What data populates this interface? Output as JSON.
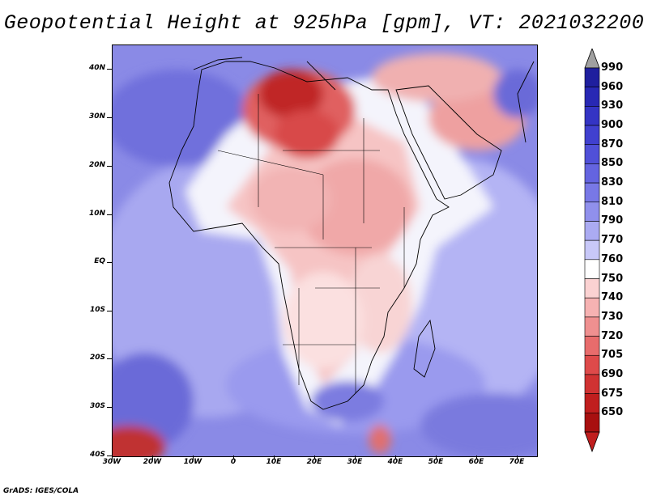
{
  "title": "Geopotential Height at 925hPa [gpm], VT: 2021032200",
  "credit": "GrADS: IGES/COLA",
  "map": {
    "region": "Africa",
    "lat_range": [
      -40,
      45
    ],
    "lon_range": [
      -30,
      75
    ],
    "lat_ticks": [
      "40N",
      "30N",
      "20N",
      "10N",
      "EQ",
      "10S",
      "20S",
      "30S",
      "40S"
    ],
    "lat_values": [
      40,
      30,
      20,
      10,
      0,
      -10,
      -20,
      -30,
      -40
    ],
    "lon_ticks": [
      "30W",
      "20W",
      "10W",
      "0",
      "10E",
      "20E",
      "30E",
      "40E",
      "50E",
      "60E",
      "70E"
    ],
    "lon_values": [
      -30,
      -20,
      -10,
      0,
      10,
      20,
      30,
      40,
      50,
      60,
      70
    ]
  },
  "colorbar": {
    "levels": [
      "990",
      "960",
      "930",
      "900",
      "870",
      "850",
      "830",
      "810",
      "790",
      "770",
      "760",
      "750",
      "740",
      "730",
      "720",
      "705",
      "690",
      "675",
      "650"
    ],
    "colors": [
      "#1f1f9e",
      "#2828b4",
      "#3434c4",
      "#4040cf",
      "#5050d8",
      "#6464e0",
      "#7878e6",
      "#9090ec",
      "#ababf2",
      "#c8c8f8",
      "#ffffff",
      "#fbd2d2",
      "#f6b2b2",
      "#ef9090",
      "#e86c6c",
      "#de4a4a",
      "#d03232",
      "#c01e1e",
      "#a81010"
    ],
    "top_arrow_color": "#a0a0a0",
    "bottom_arrow_color": "#c01e1e"
  }
}
